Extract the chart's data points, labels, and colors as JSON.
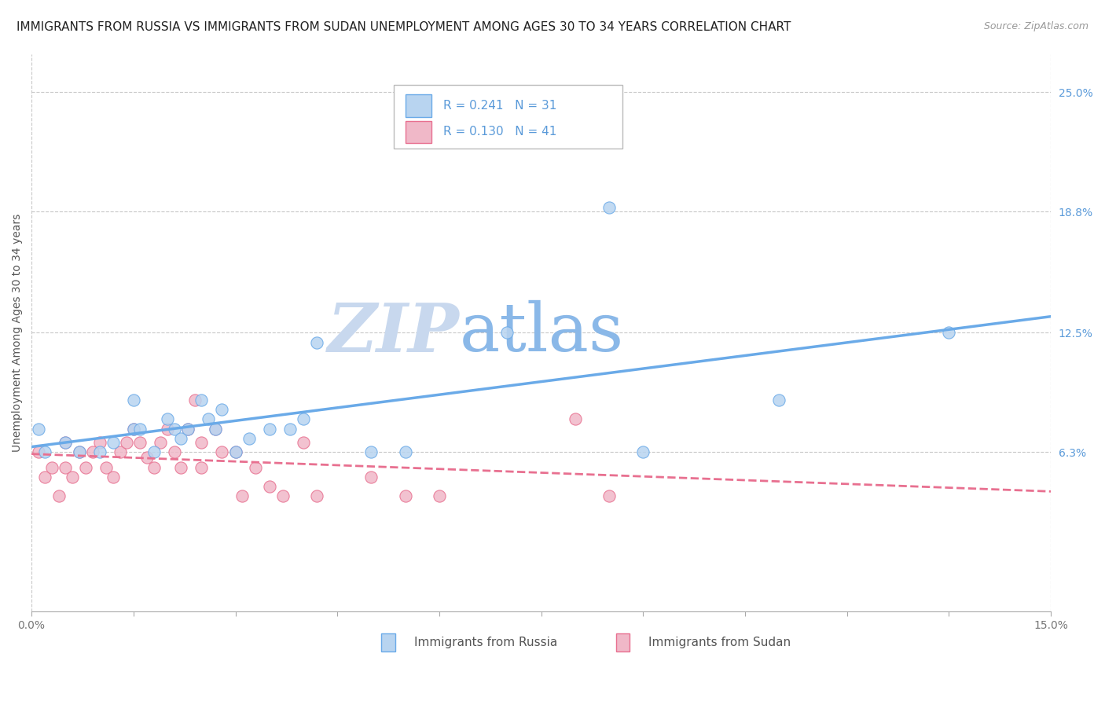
{
  "title": "IMMIGRANTS FROM RUSSIA VS IMMIGRANTS FROM SUDAN UNEMPLOYMENT AMONG AGES 30 TO 34 YEARS CORRELATION CHART",
  "source": "Source: ZipAtlas.com",
  "ylabel": "Unemployment Among Ages 30 to 34 years",
  "xlim": [
    0.0,
    0.15
  ],
  "ylim": [
    -0.02,
    0.27
  ],
  "y_ticks_right": [
    0.063,
    0.125,
    0.188,
    0.25
  ],
  "y_tick_labels_right": [
    "6.3%",
    "12.5%",
    "18.8%",
    "25.0%"
  ],
  "x_ticks": [
    0.0,
    0.015,
    0.03,
    0.045,
    0.06,
    0.075,
    0.09,
    0.105,
    0.12,
    0.135,
    0.15
  ],
  "x_tick_labels_show": [
    "0.0%",
    "",
    "",
    "",
    "",
    "",
    "",
    "",
    "",
    "",
    "15.0%"
  ],
  "grid_color": "#c8c8c8",
  "background_color": "#ffffff",
  "russia": {
    "R": 0.241,
    "N": 31,
    "color": "#b8d4f0",
    "edge_color": "#6aaae8",
    "label": "Immigrants from Russia",
    "x": [
      0.001,
      0.002,
      0.005,
      0.007,
      0.01,
      0.012,
      0.015,
      0.015,
      0.016,
      0.018,
      0.02,
      0.021,
      0.022,
      0.023,
      0.025,
      0.026,
      0.027,
      0.028,
      0.03,
      0.032,
      0.035,
      0.038,
      0.04,
      0.042,
      0.05,
      0.055,
      0.07,
      0.085,
      0.09,
      0.11,
      0.135
    ],
    "y": [
      0.075,
      0.063,
      0.068,
      0.063,
      0.063,
      0.068,
      0.075,
      0.09,
      0.075,
      0.063,
      0.08,
      0.075,
      0.07,
      0.075,
      0.09,
      0.08,
      0.075,
      0.085,
      0.063,
      0.07,
      0.075,
      0.075,
      0.08,
      0.12,
      0.063,
      0.063,
      0.125,
      0.19,
      0.063,
      0.09,
      0.125
    ]
  },
  "sudan": {
    "R": 0.13,
    "N": 41,
    "color": "#f0b8c8",
    "edge_color": "#e87090",
    "label": "Immigrants from Sudan",
    "x": [
      0.001,
      0.002,
      0.003,
      0.004,
      0.005,
      0.005,
      0.006,
      0.007,
      0.008,
      0.009,
      0.01,
      0.011,
      0.012,
      0.013,
      0.014,
      0.015,
      0.016,
      0.017,
      0.018,
      0.019,
      0.02,
      0.021,
      0.022,
      0.023,
      0.024,
      0.025,
      0.025,
      0.027,
      0.028,
      0.03,
      0.031,
      0.033,
      0.035,
      0.037,
      0.04,
      0.042,
      0.05,
      0.055,
      0.06,
      0.08,
      0.085
    ],
    "y": [
      0.063,
      0.05,
      0.055,
      0.04,
      0.055,
      0.068,
      0.05,
      0.063,
      0.055,
      0.063,
      0.068,
      0.055,
      0.05,
      0.063,
      0.068,
      0.075,
      0.068,
      0.06,
      0.055,
      0.068,
      0.075,
      0.063,
      0.055,
      0.075,
      0.09,
      0.068,
      0.055,
      0.075,
      0.063,
      0.063,
      0.04,
      0.055,
      0.045,
      0.04,
      0.068,
      0.04,
      0.05,
      0.04,
      0.04,
      0.08,
      0.04
    ]
  },
  "watermark_zip": "ZIP",
  "watermark_atlas": "atlas",
  "watermark_color_zip": "#c8d8ee",
  "watermark_color_atlas": "#8ab8e8",
  "title_fontsize": 11,
  "axis_label_fontsize": 10,
  "tick_fontsize": 10,
  "legend_fontsize": 11
}
